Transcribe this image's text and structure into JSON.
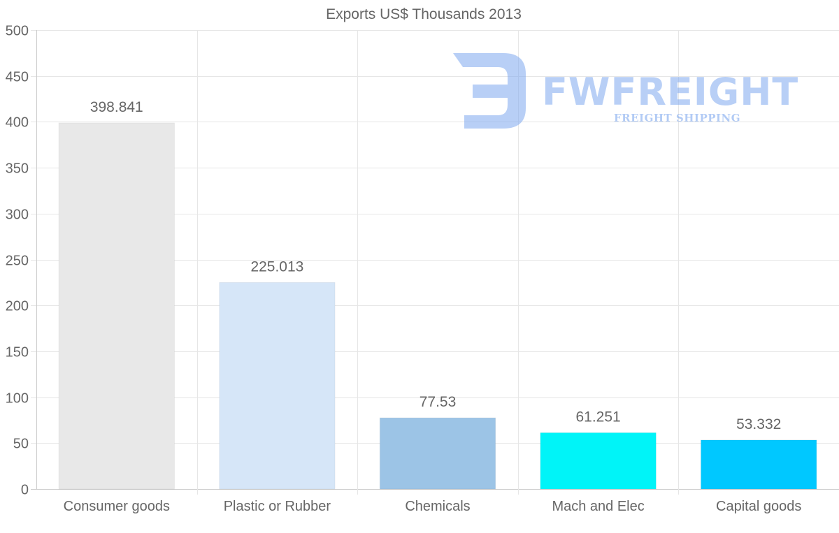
{
  "chart_data": {
    "type": "bar",
    "title": "Exports US$ Thousands 2013",
    "categories": [
      "Consumer goods",
      "Plastic or Rubber",
      "Chemicals",
      "Mach and Elec",
      "Capital goods"
    ],
    "values": [
      398.841,
      225.013,
      77.53,
      61.251,
      53.332
    ],
    "value_labels": [
      "398.841",
      "225.013",
      "77.53",
      "61.251",
      "53.332"
    ],
    "colors": [
      "#e8e8e8",
      "#d6e6f8",
      "#9cc4e6",
      "#00f4f8",
      "#00c8ff"
    ],
    "yticks": [
      "0",
      "50",
      "100",
      "150",
      "200",
      "250",
      "300",
      "350",
      "400",
      "450",
      "500"
    ],
    "ylim": [
      0,
      500
    ],
    "xlabel": "",
    "ylabel": "",
    "grid": true,
    "legend": "none"
  },
  "watermark": {
    "brand": "FWFREIGHT",
    "tagline": "FREIGHT SHIPPING",
    "color": "#7ea8ee"
  }
}
